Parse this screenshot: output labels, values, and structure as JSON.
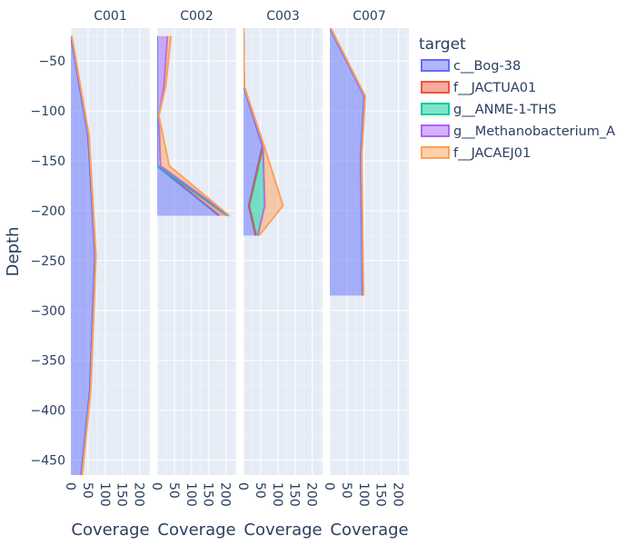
{
  "chart_data": {
    "type": "area",
    "ylabel": "Depth",
    "xlabel": "Coverage",
    "ylim": [
      -465,
      -17
    ],
    "xlim": [
      0,
      230
    ],
    "xticks": [
      0,
      50,
      100,
      150,
      200
    ],
    "yticks": [
      -50,
      -100,
      -150,
      -200,
      -250,
      -300,
      -350,
      -400,
      -450
    ],
    "legend": {
      "title": "target",
      "placement": "right",
      "entries": [
        "c__Bog-38",
        "f__JACTUA01",
        "g__ANME-1-THS",
        "g__Methanobacterium_A",
        "f__JACAEJ01"
      ]
    },
    "colors": {
      "c__Bog-38": "#636efa",
      "f__JACTUA01": "#ef553b",
      "g__ANME-1-THS": "#00cc96",
      "g__Methanobacterium_A": "#ab63fa",
      "f__JACAEJ01": "#ffa15a"
    },
    "facets": [
      {
        "title": "C001",
        "series": [
          {
            "name": "c__Bog-38",
            "points": [
              [
                0,
                -25
              ],
              [
                50,
                -125
              ],
              [
                70,
                -245
              ],
              [
                55,
                -380
              ],
              [
                30,
                -465
              ]
            ]
          },
          {
            "name": "f__JACTUA01",
            "points": [
              [
                2,
                -25
              ],
              [
                52,
                -125
              ],
              [
                72,
                -245
              ],
              [
                57,
                -380
              ],
              [
                32,
                -465
              ]
            ]
          },
          {
            "name": "g__ANME-1-THS",
            "points": [
              [
                2,
                -25
              ],
              [
                52,
                -125
              ],
              [
                72,
                -245
              ],
              [
                57,
                -380
              ],
              [
                32,
                -465
              ]
            ]
          },
          {
            "name": "g__Methanobacterium_A",
            "points": [
              [
                2,
                -25
              ],
              [
                52,
                -125
              ],
              [
                72,
                -245
              ],
              [
                57,
                -380
              ],
              [
                32,
                -465
              ]
            ]
          },
          {
            "name": "f__JACAEJ01",
            "points": [
              [
                3,
                -25
              ],
              [
                53,
                -125
              ],
              [
                73,
                -245
              ],
              [
                58,
                -380
              ],
              [
                33,
                -465
              ]
            ]
          }
        ]
      },
      {
        "title": "C002",
        "series": [
          {
            "name": "c__Bog-38",
            "points": [
              [
                0,
                -25
              ],
              [
                0,
                -155
              ],
              [
                180,
                -205
              ]
            ]
          },
          {
            "name": "f__JACTUA01",
            "points": [
              [
                0,
                -25
              ],
              [
                0,
                -155
              ],
              [
                205,
                -205
              ]
            ]
          },
          {
            "name": "g__ANME-1-THS",
            "points": [
              [
                0,
                -25
              ],
              [
                0,
                -155
              ],
              [
                205,
                -205
              ]
            ]
          },
          {
            "name": "g__Methanobacterium_A",
            "points": [
              [
                30,
                -25
              ],
              [
                20,
                -75
              ],
              [
                5,
                -105
              ],
              [
                10,
                -155
              ],
              [
                210,
                -205
              ]
            ]
          },
          {
            "name": "f__JACAEJ01",
            "points": [
              [
                40,
                -25
              ],
              [
                25,
                -75
              ],
              [
                5,
                -105
              ],
              [
                35,
                -155
              ],
              [
                210,
                -205
              ]
            ]
          }
        ]
      },
      {
        "title": "C003",
        "series": [
          {
            "name": "c__Bog-38",
            "points": [
              [
                0,
                -17
              ],
              [
                0,
                -75
              ],
              [
                55,
                -135
              ],
              [
                15,
                -195
              ],
              [
                35,
                -225
              ]
            ]
          },
          {
            "name": "f__JACTUA01",
            "points": [
              [
                0,
                -17
              ],
              [
                2,
                -75
              ],
              [
                57,
                -135
              ],
              [
                17,
                -195
              ],
              [
                37,
                -225
              ]
            ]
          },
          {
            "name": "g__ANME-1-THS",
            "points": [
              [
                0,
                -17
              ],
              [
                2,
                -75
              ],
              [
                57,
                -135
              ],
              [
                62,
                -195
              ],
              [
                42,
                -225
              ]
            ]
          },
          {
            "name": "g__Methanobacterium_A",
            "points": [
              [
                0,
                -17
              ],
              [
                2,
                -75
              ],
              [
                57,
                -135
              ],
              [
                62,
                -195
              ],
              [
                42,
                -225
              ]
            ]
          },
          {
            "name": "f__JACAEJ01",
            "points": [
              [
                0,
                -17
              ],
              [
                2,
                -75
              ],
              [
                60,
                -135
              ],
              [
                115,
                -195
              ],
              [
                45,
                -225
              ]
            ]
          }
        ]
      },
      {
        "title": "C007",
        "series": [
          {
            "name": "c__Bog-38",
            "points": [
              [
                0,
                -17
              ],
              [
                100,
                -85
              ],
              [
                90,
                -145
              ],
              [
                95,
                -285
              ]
            ]
          },
          {
            "name": "f__JACTUA01",
            "points": [
              [
                2,
                -17
              ],
              [
                102,
                -85
              ],
              [
                92,
                -145
              ],
              [
                97,
                -285
              ]
            ]
          },
          {
            "name": "g__ANME-1-THS",
            "points": [
              [
                2,
                -17
              ],
              [
                102,
                -85
              ],
              [
                92,
                -145
              ],
              [
                97,
                -285
              ]
            ]
          },
          {
            "name": "g__Methanobacterium_A",
            "points": [
              [
                2,
                -17
              ],
              [
                102,
                -85
              ],
              [
                92,
                -145
              ],
              [
                97,
                -285
              ]
            ]
          },
          {
            "name": "f__JACAEJ01",
            "points": [
              [
                3,
                -17
              ],
              [
                103,
                -85
              ],
              [
                93,
                -145
              ],
              [
                98,
                -285
              ]
            ]
          }
        ]
      }
    ]
  }
}
